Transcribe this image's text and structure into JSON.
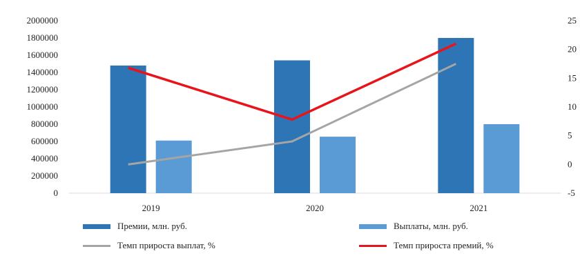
{
  "chart_data": {
    "type": "bar",
    "categories": [
      "2019",
      "2020",
      "2021"
    ],
    "series": [
      {
        "name": "Премии, млн. руб.",
        "kind": "bar",
        "axis": "left",
        "color": "#2E75B6",
        "values": [
          1480000,
          1540000,
          1800000
        ]
      },
      {
        "name": "Выплаты, млн. руб.",
        "kind": "bar",
        "axis": "left",
        "color": "#5B9BD5",
        "values": [
          610000,
          655000,
          800000
        ]
      },
      {
        "name": "Темп прироста выплат, %",
        "kind": "line",
        "axis": "right",
        "color": "#A5A5A5",
        "values": [
          0,
          4,
          17.5
        ]
      },
      {
        "name": "Темп прироста премий, %",
        "kind": "line",
        "axis": "right",
        "color": "#E8141B",
        "values": [
          16.8,
          7.8,
          21
        ]
      }
    ],
    "y_left": {
      "ylim": [
        0,
        2000000
      ],
      "ticks": [
        "0",
        "200000",
        "400000",
        "600000",
        "800000",
        "1000000",
        "1200000",
        "1400000",
        "1600000",
        "1800000",
        "2000000"
      ]
    },
    "y_right": {
      "ylim": [
        -5,
        25
      ],
      "ticks": [
        "-5",
        "0",
        "5",
        "10",
        "15",
        "20",
        "25"
      ]
    },
    "title": "",
    "xlabel": "",
    "ylabel": "",
    "grid": false,
    "legend_position": "bottom"
  }
}
